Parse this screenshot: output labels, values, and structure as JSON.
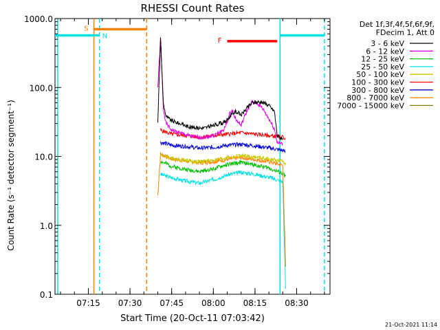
{
  "chart_data": {
    "type": "line",
    "title": "RHESSI Count Rates",
    "xlabel": "Start Time (20-Oct-11 07:03:42)",
    "ylabel": "Count Rate (s⁻¹ detector segment⁻¹)",
    "x_unit": "minutes",
    "x_range": [
      "07:03",
      "08:42"
    ],
    "y_scale": "log",
    "ylim": [
      0.1,
      1000
    ],
    "x_ticks": [
      {
        "t": "07:15",
        "label": "07:15"
      },
      {
        "t": "07:30",
        "label": "07:30"
      },
      {
        "t": "07:45",
        "label": "07:45"
      },
      {
        "t": "08:00",
        "label": "08:00"
      },
      {
        "t": "08:15",
        "label": "08:15"
      },
      {
        "t": "08:30",
        "label": "08:30"
      }
    ],
    "y_ticks": [
      {
        "v": 0.1,
        "label": "0.1"
      },
      {
        "v": 1,
        "label": "1.0"
      },
      {
        "v": 10,
        "label": "10.0"
      },
      {
        "v": 100,
        "label": "100.0"
      },
      {
        "v": 1000,
        "label": "1000.0"
      }
    ],
    "legend": {
      "position": "right",
      "header": [
        "Det 1f,3f,4f,5f,6f,9f,",
        "FDecim 1, Att 0"
      ]
    },
    "series": [
      {
        "name": "3 - 6 keV",
        "color": "#000000",
        "points": [
          [
            "07:40",
            30
          ],
          [
            "07:41",
            500
          ],
          [
            "07:42",
            60
          ],
          [
            "07:43",
            38
          ],
          [
            "07:45",
            33
          ],
          [
            "07:48",
            30
          ],
          [
            "07:51",
            27
          ],
          [
            "07:54",
            26
          ],
          [
            "07:57",
            26
          ],
          [
            "08:00",
            28
          ],
          [
            "08:02",
            30
          ],
          [
            "08:04",
            31
          ],
          [
            "08:06",
            38
          ],
          [
            "08:08",
            45
          ],
          [
            "08:10",
            40
          ],
          [
            "08:12",
            50
          ],
          [
            "08:14",
            60
          ],
          [
            "08:16",
            62
          ],
          [
            "08:18",
            60
          ],
          [
            "08:20",
            55
          ],
          [
            "08:22",
            45
          ],
          [
            "08:23",
            20
          ],
          [
            "08:25",
            18
          ]
        ]
      },
      {
        "name": "6 - 12 keV",
        "color": "#e000e0",
        "points": [
          [
            "07:40",
            100
          ],
          [
            "07:41",
            520
          ],
          [
            "07:42",
            50
          ],
          [
            "07:43",
            30
          ],
          [
            "07:45",
            24
          ],
          [
            "07:48",
            22
          ],
          [
            "07:51",
            20
          ],
          [
            "07:54",
            19
          ],
          [
            "07:57",
            19
          ],
          [
            "08:00",
            20
          ],
          [
            "08:02",
            22
          ],
          [
            "08:04",
            25
          ],
          [
            "08:06",
            42
          ],
          [
            "08:07",
            46
          ],
          [
            "08:08",
            35
          ],
          [
            "08:10",
            28
          ],
          [
            "08:12",
            45
          ],
          [
            "08:14",
            62
          ],
          [
            "08:16",
            58
          ],
          [
            "08:18",
            48
          ],
          [
            "08:20",
            35
          ],
          [
            "08:22",
            25
          ],
          [
            "08:23",
            16
          ],
          [
            "08:25",
            15
          ]
        ]
      },
      {
        "name": "12 - 25 keV",
        "color": "#00c000",
        "points": [
          [
            "07:41",
            8.5
          ],
          [
            "07:45",
            7.2
          ],
          [
            "07:50",
            6.5
          ],
          [
            "07:55",
            6.0
          ],
          [
            "08:00",
            6.6
          ],
          [
            "08:05",
            7.6
          ],
          [
            "08:10",
            8.2
          ],
          [
            "08:15",
            7.5
          ],
          [
            "08:20",
            6.8
          ],
          [
            "08:25",
            5.6
          ],
          [
            "08:26",
            5.2
          ]
        ]
      },
      {
        "name": "25 - 50 keV",
        "color": "#00e0e0",
        "points": [
          [
            "07:41",
            5.5
          ],
          [
            "07:45",
            4.9
          ],
          [
            "07:50",
            4.4
          ],
          [
            "07:55",
            4.1
          ],
          [
            "08:00",
            4.6
          ],
          [
            "08:05",
            5.4
          ],
          [
            "08:10",
            5.9
          ],
          [
            "08:15",
            5.5
          ],
          [
            "08:20",
            5.0
          ],
          [
            "08:25",
            4.3
          ],
          [
            "08:26",
            0.12
          ]
        ]
      },
      {
        "name": "50 - 100 keV",
        "color": "#c8c800",
        "points": [
          [
            "07:41",
            10.5
          ],
          [
            "07:45",
            9.4
          ],
          [
            "07:50",
            8.8
          ],
          [
            "07:55",
            8.3
          ],
          [
            "08:00",
            8.8
          ],
          [
            "08:05",
            9.6
          ],
          [
            "08:10",
            10.2
          ],
          [
            "08:15",
            9.7
          ],
          [
            "08:20",
            9.2
          ],
          [
            "08:25",
            8.4
          ],
          [
            "08:26",
            8.0
          ]
        ]
      },
      {
        "name": "100 - 300 keV",
        "color": "#ff0000",
        "points": [
          [
            "07:41",
            24
          ],
          [
            "07:45",
            21
          ],
          [
            "07:50",
            20
          ],
          [
            "07:55",
            19
          ],
          [
            "08:00",
            20
          ],
          [
            "08:05",
            21
          ],
          [
            "08:10",
            22
          ],
          [
            "08:15",
            21
          ],
          [
            "08:20",
            20
          ],
          [
            "08:25",
            19
          ],
          [
            "08:26",
            18.5
          ]
        ]
      },
      {
        "name": "300 - 800 keV",
        "color": "#0000e0",
        "points": [
          [
            "07:41",
            16
          ],
          [
            "07:45",
            14.5
          ],
          [
            "07:50",
            14
          ],
          [
            "07:55",
            13.2
          ],
          [
            "08:00",
            13.5
          ],
          [
            "08:05",
            14.5
          ],
          [
            "08:10",
            15
          ],
          [
            "08:15",
            14.2
          ],
          [
            "08:20",
            13.3
          ],
          [
            "08:25",
            12.2
          ],
          [
            "08:26",
            11.5
          ]
        ]
      },
      {
        "name": "800 - 7000 keV",
        "color": "#ff8000",
        "points": [
          [
            "07:40",
            2.7
          ],
          [
            "07:41",
            10.8
          ],
          [
            "07:45",
            9.2
          ],
          [
            "07:50",
            8.6
          ],
          [
            "07:55",
            8.0
          ],
          [
            "08:00",
            8.4
          ],
          [
            "08:05",
            9.0
          ],
          [
            "08:10",
            9.6
          ],
          [
            "08:15",
            9.0
          ],
          [
            "08:20",
            8.4
          ],
          [
            "08:25",
            7.4
          ],
          [
            "08:26",
            0.25
          ]
        ]
      },
      {
        "name": "7000 - 15000 keV",
        "color": "#808000",
        "points": []
      }
    ],
    "annotations": [
      {
        "label": "S",
        "color": "#ff8000",
        "t0": "07:17",
        "t1": "07:36",
        "v": 700
      },
      {
        "label": "N",
        "color": "#00e0e0",
        "t0": "07:03",
        "t1": "07:19",
        "v": 570
      },
      {
        "label": "",
        "color": "#00e0e0",
        "t0": "08:24",
        "t1": "08:40",
        "v": 570
      },
      {
        "label": "F",
        "color": "#ff0000",
        "t0": "08:05",
        "t1": "08:23",
        "v": 470
      }
    ],
    "vlines": [
      {
        "t": "07:04",
        "color": "#00e0e0",
        "dashed": false
      },
      {
        "t": "07:17",
        "color": "#ff8000",
        "dashed": false
      },
      {
        "t": "07:19",
        "color": "#00e0e0",
        "dashed": true
      },
      {
        "t": "07:36",
        "color": "#ff8000",
        "dashed": true
      },
      {
        "t": "08:24",
        "color": "#00e0e0",
        "dashed": false
      },
      {
        "t": "08:40",
        "color": "#00e0e0",
        "dashed": true
      }
    ]
  },
  "footer_date": "21-Oct-2021 11:14"
}
